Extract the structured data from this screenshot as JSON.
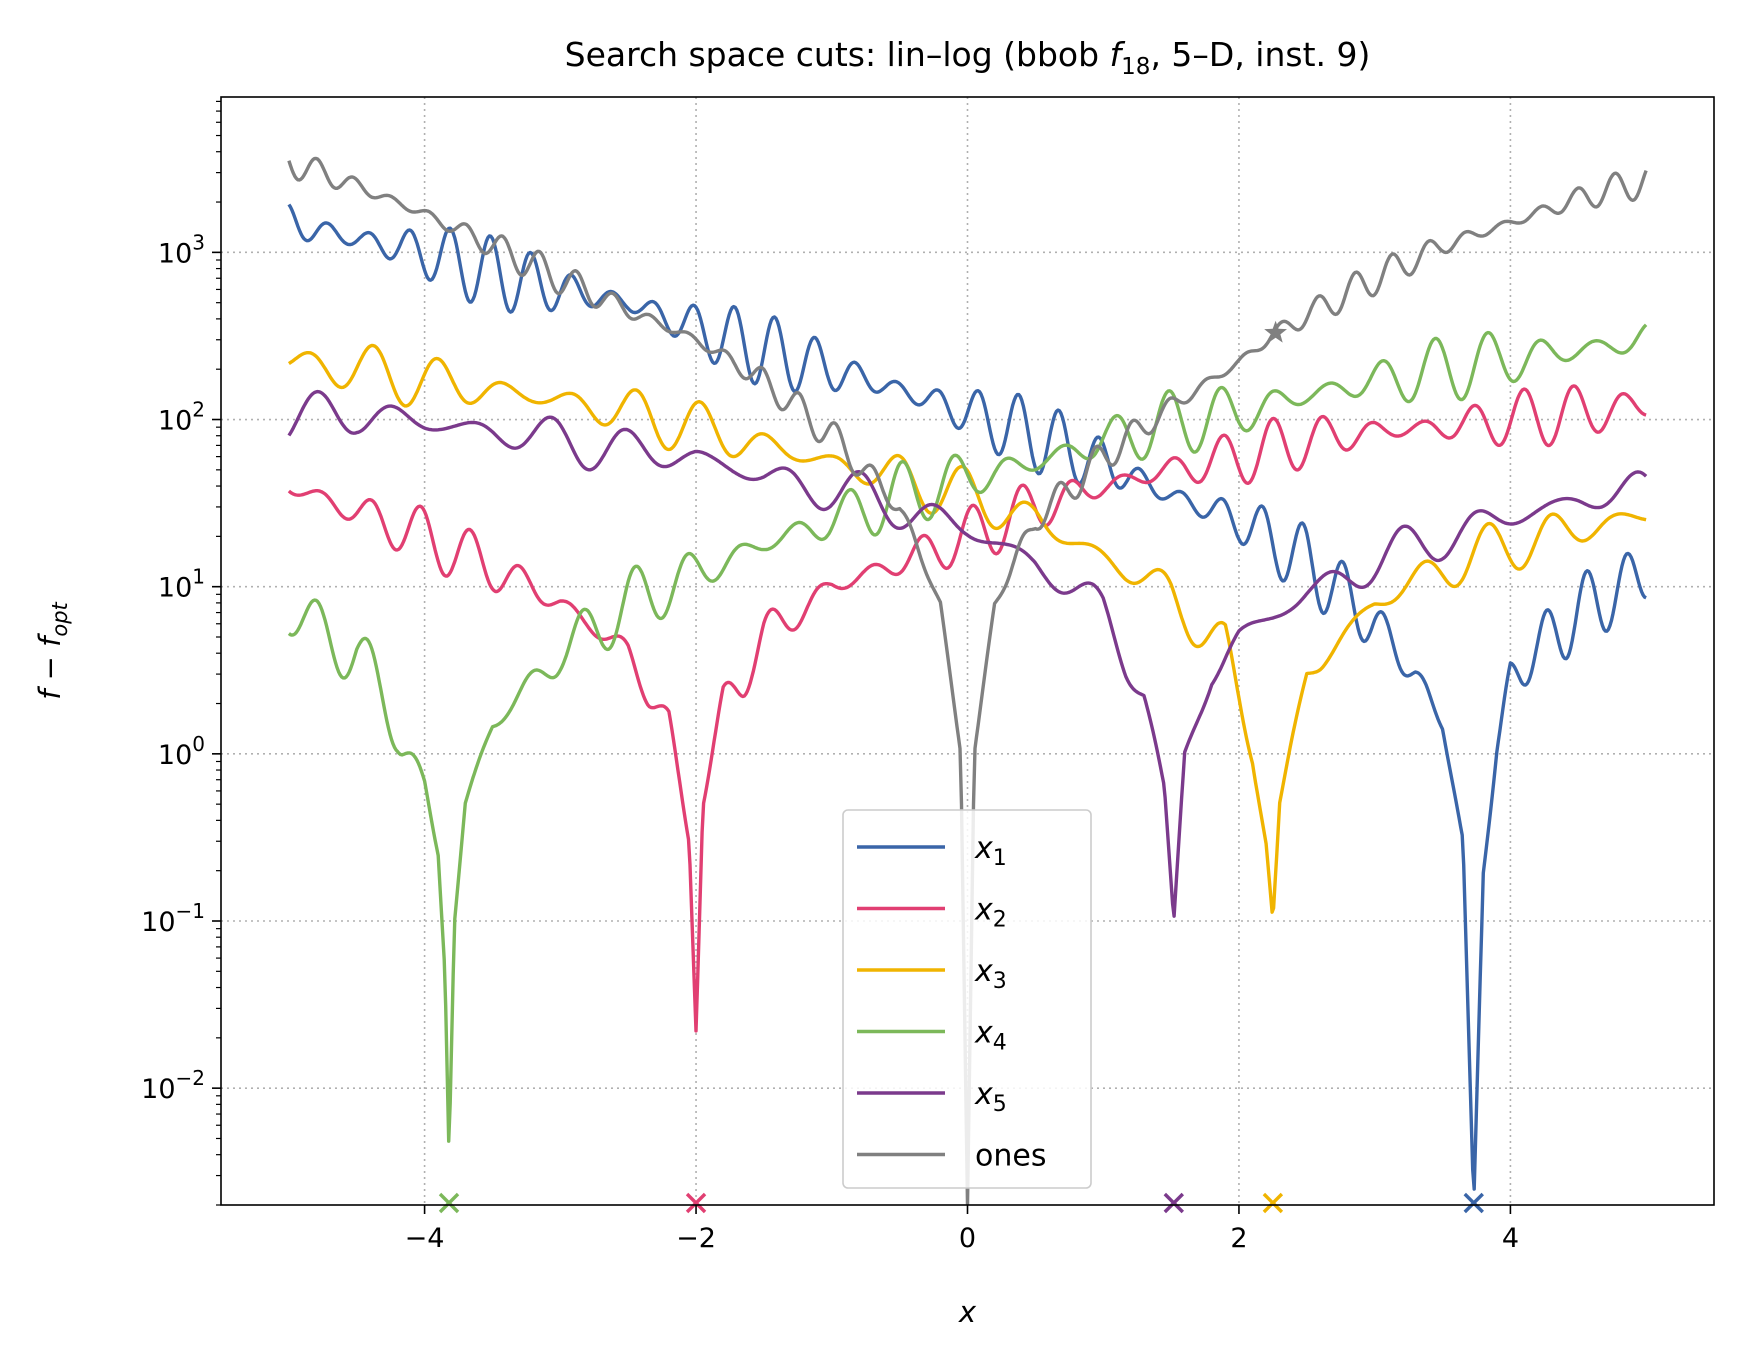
{
  "chart_data": {
    "type": "line",
    "title": "Search space cuts: lin–log (bbob f18, 5–D, inst. 9)",
    "xlabel": "x",
    "ylabel": "f − f_opt",
    "xscale": "linear",
    "yscale": "log",
    "xlim": [
      -5.5,
      5.5
    ],
    "ylim": [
      0.002,
      8500
    ],
    "grid": true,
    "legend_position": "lower center",
    "x_ticks": [
      -4,
      -2,
      0,
      2,
      4
    ],
    "x_tick_labels": [
      "−4",
      "−2",
      "0",
      "2",
      "4"
    ],
    "y_ticks": [
      0.01,
      0.1,
      1,
      10,
      100,
      1000
    ],
    "y_tick_labels": [
      {
        "base": "10",
        "exp": "−2"
      },
      {
        "base": "10",
        "exp": "−1"
      },
      {
        "base": "10",
        "exp": "0"
      },
      {
        "base": "10",
        "exp": "1"
      },
      {
        "base": "10",
        "exp": "2"
      },
      {
        "base": "10",
        "exp": "3"
      }
    ],
    "series": [
      {
        "name": "x1",
        "label_base": "x",
        "label_sub": "1",
        "color": "#3a65a8",
        "optimum_x": 3.73,
        "x": [
          -5,
          -4.5,
          -4,
          -3.5,
          -3,
          -2.5,
          -2,
          -1.5,
          -1,
          -0.5,
          0,
          0.5,
          1,
          1.5,
          2,
          2.5,
          3,
          3.3,
          3.5,
          3.65,
          3.73,
          3.8,
          3.9,
          4,
          4.5,
          5
        ],
        "y": [
          1500,
          1200,
          1000,
          750,
          600,
          500,
          350,
          260,
          200,
          150,
          110,
          80,
          55,
          35,
          25,
          14,
          6,
          3,
          1.5,
          0.3,
          0.002,
          0.2,
          1,
          3,
          7,
          12
        ]
      },
      {
        "name": "x2",
        "label_base": "x",
        "label_sub": "2",
        "color": "#e13f72",
        "optimum_x": -2.0,
        "x": [
          -5,
          -4.5,
          -4,
          -3.5,
          -3,
          -2.5,
          -2.2,
          -2.05,
          -2,
          -1.95,
          -1.8,
          -1.5,
          -1,
          -0.5,
          0,
          0.5,
          1,
          1.5,
          2,
          2.5,
          3,
          3.5,
          4,
          4.5,
          5
        ],
        "y": [
          40,
          28,
          20,
          13,
          8,
          4,
          1.5,
          0.3,
          0.022,
          0.5,
          2,
          5,
          10,
          14,
          20,
          30,
          40,
          50,
          60,
          75,
          85,
          90,
          100,
          110,
          120
        ]
      },
      {
        "name": "x3",
        "label_base": "x",
        "label_sub": "3",
        "color": "#f0b400",
        "optimum_x": 2.25,
        "x": [
          -5,
          -4.5,
          -4,
          -3.5,
          -3,
          -2.5,
          -2,
          -1.5,
          -1,
          -0.5,
          0,
          0.5,
          1,
          1.5,
          1.9,
          2.1,
          2.2,
          2.25,
          2.3,
          2.5,
          3,
          3.5,
          4,
          4.5,
          5
        ],
        "y": [
          220,
          200,
          170,
          150,
          130,
          110,
          90,
          70,
          55,
          45,
          35,
          25,
          15,
          9,
          4,
          1,
          0.3,
          0.1,
          0.5,
          3,
          8,
          13,
          18,
          22,
          27
        ]
      },
      {
        "name": "x4",
        "label_base": "x",
        "label_sub": "4",
        "color": "#7cb85a",
        "optimum_x": -3.82,
        "x": [
          -5,
          -4.5,
          -4.2,
          -4,
          -3.9,
          -3.85,
          -3.82,
          -3.78,
          -3.7,
          -3.5,
          -3,
          -2.5,
          -2,
          -1.5,
          -1,
          -0.5,
          0,
          0.5,
          1,
          1.5,
          2,
          2.5,
          3,
          3.5,
          4,
          4.5,
          5
        ],
        "y": [
          7,
          4,
          1.5,
          0.6,
          0.25,
          0.05,
          0.004,
          0.1,
          0.5,
          1.5,
          4,
          8,
          12,
          18,
          25,
          35,
          45,
          55,
          75,
          95,
          110,
          140,
          170,
          200,
          230,
          260,
          300
        ]
      },
      {
        "name": "x5",
        "label_base": "x",
        "label_sub": "5",
        "color": "#7b3a8c",
        "optimum_x": 1.52,
        "x": [
          -5,
          -4.5,
          -4,
          -3.5,
          -3,
          -2.5,
          -2,
          -1.5,
          -1,
          -0.5,
          0,
          0.5,
          1,
          1.3,
          1.45,
          1.52,
          1.6,
          1.8,
          2,
          2.5,
          3,
          3.5,
          4,
          4.5,
          5
        ],
        "y": [
          100,
          110,
          95,
          85,
          75,
          65,
          60,
          45,
          38,
          30,
          22,
          14,
          7,
          2.5,
          0.6,
          0.1,
          1,
          3,
          5,
          9,
          14,
          20,
          26,
          33,
          38
        ]
      },
      {
        "name": "ones",
        "label_base": "ones",
        "label_sub": "",
        "color": "#808080",
        "optimum_x": 0.0,
        "marker_star_x": 2.27,
        "x": [
          -5,
          -4.5,
          -4,
          -3.5,
          -3,
          -2.5,
          -2,
          -1.5,
          -1,
          -0.5,
          -0.2,
          -0.05,
          0,
          0.05,
          0.2,
          0.5,
          1,
          1.5,
          2,
          2.27,
          2.5,
          3,
          3.5,
          4,
          4.5,
          5
        ],
        "y": [
          3500,
          2500,
          1700,
          1100,
          700,
          450,
          300,
          170,
          80,
          30,
          8,
          1,
          0.002,
          1,
          8,
          25,
          60,
          120,
          220,
          330,
          420,
          700,
          1100,
          1500,
          2100,
          2700
        ]
      }
    ]
  }
}
